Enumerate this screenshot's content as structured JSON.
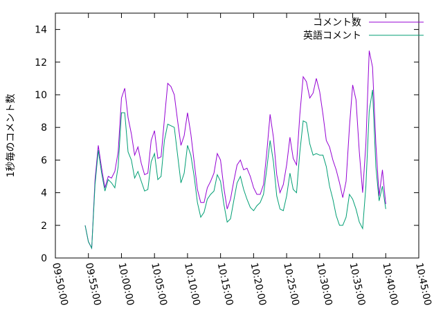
{
  "chart_data": {
    "type": "line",
    "ylabel": "1秒毎のコメント数",
    "x": [
      "09:54:30",
      "09:55:00",
      "09:55:30",
      "09:56:00",
      "09:56:30",
      "09:57:00",
      "09:57:30",
      "09:58:00",
      "09:58:30",
      "09:59:00",
      "09:59:30",
      "10:00:00",
      "10:00:30",
      "10:01:00",
      "10:01:30",
      "10:02:00",
      "10:02:30",
      "10:03:00",
      "10:03:30",
      "10:04:00",
      "10:04:30",
      "10:05:00",
      "10:05:30",
      "10:06:00",
      "10:06:30",
      "10:07:00",
      "10:07:30",
      "10:08:00",
      "10:08:30",
      "10:09:00",
      "10:09:30",
      "10:10:00",
      "10:10:30",
      "10:11:00",
      "10:11:30",
      "10:12:00",
      "10:12:30",
      "10:13:00",
      "10:13:30",
      "10:14:00",
      "10:14:30",
      "10:15:00",
      "10:15:30",
      "10:16:00",
      "10:16:30",
      "10:17:00",
      "10:17:30",
      "10:18:00",
      "10:18:30",
      "10:19:00",
      "10:19:30",
      "10:20:00",
      "10:20:30",
      "10:21:00",
      "10:21:30",
      "10:22:00",
      "10:22:30",
      "10:23:00",
      "10:23:30",
      "10:24:00",
      "10:24:30",
      "10:25:00",
      "10:25:30",
      "10:26:00",
      "10:26:30",
      "10:27:00",
      "10:27:30",
      "10:28:00",
      "10:28:30",
      "10:29:00",
      "10:29:30",
      "10:30:00",
      "10:30:30",
      "10:31:00",
      "10:31:30",
      "10:32:00",
      "10:32:30",
      "10:33:00",
      "10:33:30",
      "10:34:00",
      "10:34:30",
      "10:35:00",
      "10:35:30",
      "10:36:00",
      "10:36:30",
      "10:37:00",
      "10:37:30",
      "10:38:00",
      "10:38:30",
      "10:39:00",
      "10:39:30",
      "10:40:00"
    ],
    "series": [
      {
        "name": "コメント数",
        "color": "#9400d3",
        "values": [
          2.0,
          1.0,
          0.6,
          4.8,
          6.9,
          5.5,
          4.3,
          5.0,
          4.9,
          5.3,
          6.5,
          9.8,
          10.4,
          8.6,
          7.6,
          6.3,
          6.8,
          5.8,
          5.1,
          5.2,
          7.2,
          7.8,
          6.1,
          6.2,
          8.5,
          10.7,
          10.5,
          10.0,
          8.4,
          6.9,
          7.5,
          8.9,
          7.6,
          5.9,
          4.2,
          3.4,
          3.4,
          4.3,
          4.7,
          5.2,
          6.4,
          6.0,
          4.3,
          3.0,
          3.6,
          4.7,
          5.7,
          6.0,
          5.4,
          5.5,
          5.0,
          4.3,
          3.9,
          3.9,
          4.5,
          6.5,
          8.8,
          7.4,
          5.1,
          4.0,
          4.5,
          5.7,
          7.4,
          6.1,
          5.7,
          8.8,
          11.1,
          10.8,
          9.8,
          10.1,
          11.0,
          10.2,
          8.8,
          7.2,
          6.8,
          6.0,
          5.4,
          4.6,
          3.7,
          4.7,
          8.0,
          10.6,
          9.7,
          6.5,
          4.0,
          7.0,
          12.7,
          11.7,
          7.0,
          3.8,
          5.4,
          3.3
        ]
      },
      {
        "name": "英語コメント",
        "color": "#009e73",
        "values": [
          2.0,
          1.0,
          0.6,
          4.5,
          6.6,
          5.2,
          4.1,
          4.8,
          4.6,
          4.3,
          5.6,
          8.9,
          8.9,
          6.5,
          6.0,
          4.9,
          5.3,
          4.7,
          4.1,
          4.2,
          5.9,
          6.4,
          4.8,
          5.0,
          7.2,
          8.2,
          8.1,
          8.0,
          6.3,
          4.6,
          5.2,
          6.9,
          6.3,
          5.0,
          3.4,
          2.5,
          2.8,
          3.6,
          3.9,
          4.1,
          5.1,
          4.7,
          3.3,
          2.2,
          2.4,
          3.5,
          4.6,
          5.0,
          4.2,
          3.6,
          3.1,
          2.9,
          3.2,
          3.4,
          3.9,
          5.5,
          7.2,
          5.9,
          3.8,
          3.0,
          2.9,
          3.8,
          5.2,
          4.2,
          4.0,
          6.5,
          8.4,
          8.3,
          7.0,
          6.3,
          6.4,
          6.3,
          6.3,
          5.6,
          4.4,
          3.6,
          2.6,
          2.0,
          2.0,
          2.5,
          3.9,
          3.6,
          3.0,
          2.2,
          1.8,
          4.4,
          9.0,
          10.3,
          5.6,
          3.5,
          4.4,
          3.0
        ]
      }
    ],
    "xlim": [
      "09:50:00",
      "10:45:00"
    ],
    "xticks": [
      "09:50:00",
      "09:55:00",
      "10:00:00",
      "10:05:00",
      "10:10:00",
      "10:15:00",
      "10:20:00",
      "10:25:00",
      "10:30:00",
      "10:35:00",
      "10:40:00",
      "10:45:00"
    ],
    "ylim": [
      0,
      15
    ],
    "yticks": [
      0,
      2,
      4,
      6,
      8,
      10,
      12,
      14
    ],
    "legend": "top-right"
  }
}
